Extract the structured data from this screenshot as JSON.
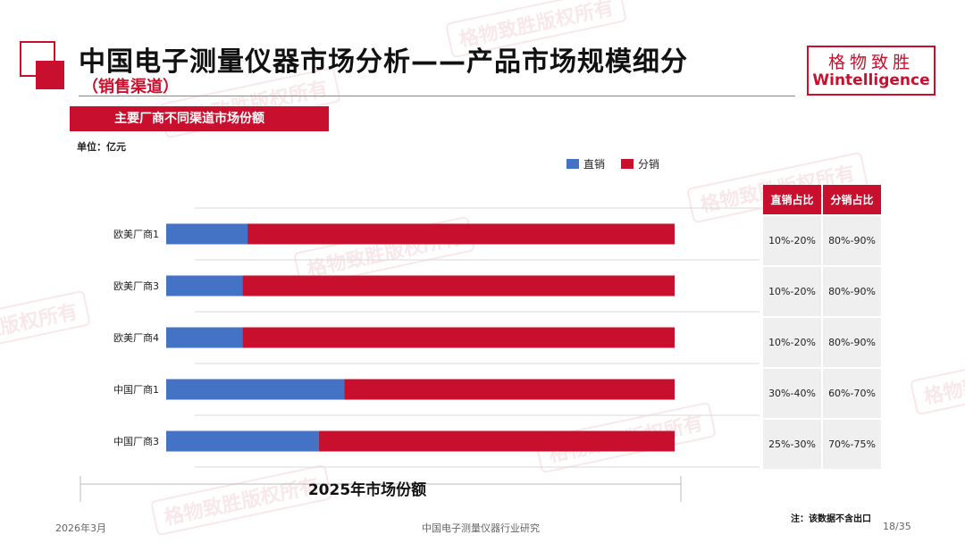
{
  "header": {
    "title": "中国电子测量仪器市场分析——产品市场规模细分",
    "subtitle": "（销售渠道）",
    "logo_cn": "格物致胜",
    "logo_en": "Wintelligence"
  },
  "watermark_text": "格物致胜版权所有",
  "section_title": "主要厂商不同渠道市场份额",
  "unit_label": "单位：亿元",
  "chart_data": {
    "type": "bar",
    "orientation": "horizontal",
    "stacked": true,
    "categories": [
      "欧美厂商1",
      "欧美厂商3",
      "欧美厂商4",
      "中国厂商1",
      "中国厂商3"
    ],
    "series": [
      {
        "name": "直销",
        "color": "#4472c4",
        "values": [
          16,
          15,
          15,
          35,
          30
        ]
      },
      {
        "name": "分销",
        "color": "#c8102e",
        "values": [
          84,
          85,
          85,
          65,
          70
        ]
      }
    ],
    "xlim": [
      0,
      100
    ],
    "xlabel": "2025年市场份额",
    "legend_position": "top-right",
    "grid": "horizontal"
  },
  "share_table": {
    "headers": [
      "直销占比",
      "分销占比"
    ],
    "rows": [
      [
        "10%-20%",
        "80%-90%"
      ],
      [
        "10%-20%",
        "80%-90%"
      ],
      [
        "10%-20%",
        "80%-90%"
      ],
      [
        "30%-40%",
        "60%-70%"
      ],
      [
        "25%-30%",
        "70%-75%"
      ]
    ]
  },
  "footer": {
    "date": "2026年3月",
    "center": "中国电子测量仪器行业研究",
    "page": "18/35",
    "note": "注：该数据不含出口"
  }
}
